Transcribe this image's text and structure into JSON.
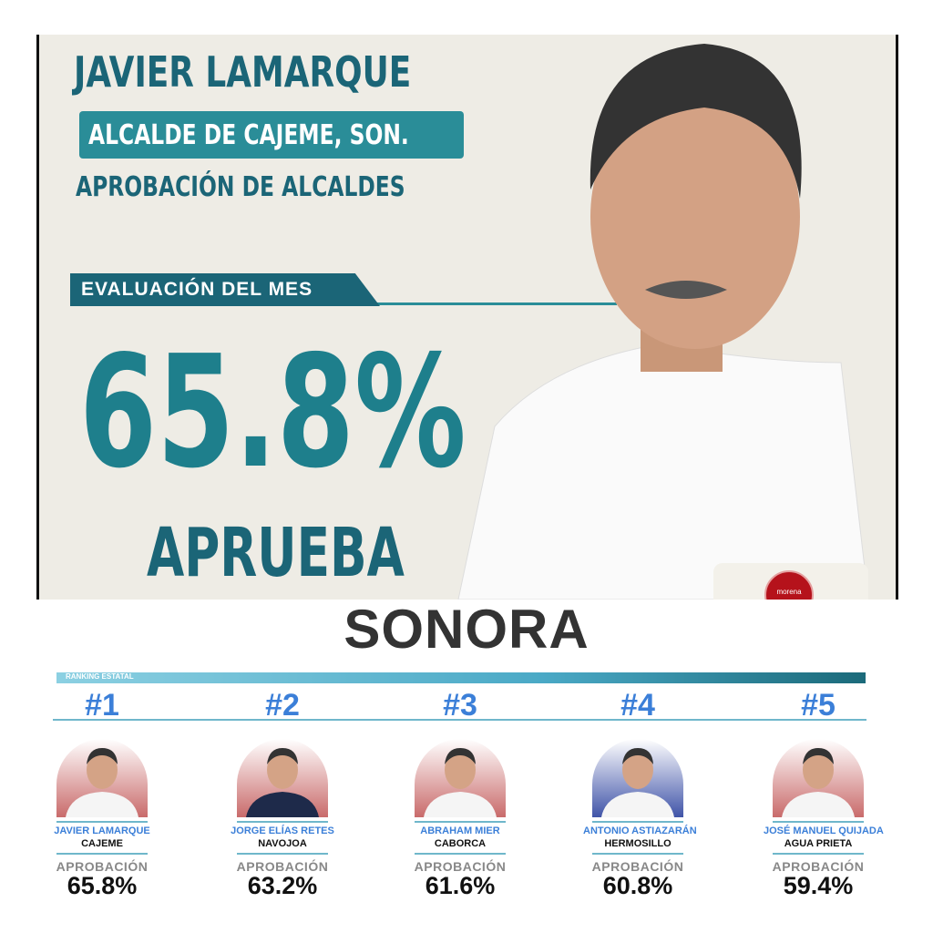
{
  "header": {
    "name": "JAVIER LAMARQUE",
    "position": "ALCALDE DE CAJEME, SON.",
    "subtitle": "APROBACIÓN DE ALCALDES",
    "eval_label": "EVALUACIÓN DEL MES",
    "approval": "65.8%",
    "verdict": "APRUEBA",
    "party_badge": "morena"
  },
  "state": "SONORA",
  "ranking": {
    "label": "RANKING ESTATAL",
    "approval_label": "APROBACIÓN",
    "items": [
      {
        "rank": "#1",
        "name": "JAVIER LAMARQUE",
        "city": "CAJEME",
        "value": "65.8%"
      },
      {
        "rank": "#2",
        "name": "JORGE ELÍAS RETES",
        "city": "NAVOJOA",
        "value": "63.2%"
      },
      {
        "rank": "#3",
        "name": "ABRAHAM MIER",
        "city": "CABORCA",
        "value": "61.6%"
      },
      {
        "rank": "#4",
        "name": "ANTONIO ASTIAZARÁN",
        "city": "HERMOSILLO",
        "value": "60.8%"
      },
      {
        "rank": "#5",
        "name": "JOSÉ MANUEL QUIJADA",
        "city": "AGUA PRIETA",
        "value": "59.4%"
      }
    ]
  }
}
